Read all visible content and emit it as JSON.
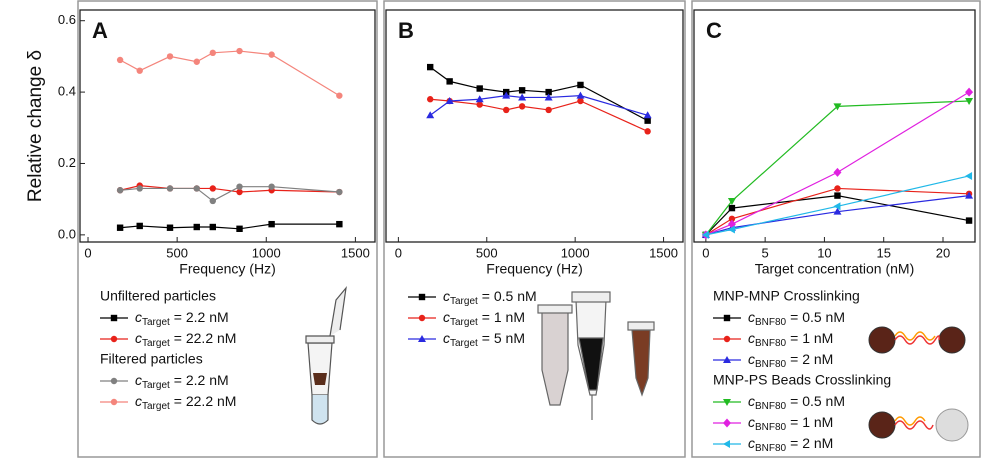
{
  "chart_data": [
    {
      "type": "line",
      "title": "A",
      "ylabel": "Relative change δ",
      "xlabel": "Frequency (Hz)",
      "x": [
        180,
        290,
        460,
        610,
        700,
        850,
        1030,
        1410
      ],
      "xlim": [
        -45,
        1610
      ],
      "xticks": [
        0,
        500,
        1000,
        1500
      ],
      "ylim": [
        -0.02,
        0.63
      ],
      "yticks": [
        {
          "value": 0,
          "label": "0.0"
        },
        0.2,
        0.4,
        0.6
      ],
      "groups": [
        {
          "title": "Unfiltered particles",
          "series": [
            {
              "name": {
                "symbol": "c",
                "sub": "Target",
                "text": "= 2.2 nM"
              },
              "color": "#000000",
              "marker": "square",
              "values": [
                0.02,
                0.025,
                0.02,
                0.022,
                0.022,
                0.017,
                0.03,
                0.03
              ]
            },
            {
              "name": {
                "symbol": "c",
                "sub": "Target",
                "text": "= 22.2 nM"
              },
              "color": "#e8221a",
              "marker": "circle",
              "values": [
                0.125,
                0.138,
                0.13,
                0.13,
                0.13,
                0.12,
                0.125,
                0.12
              ]
            }
          ]
        },
        {
          "title": "Filtered particles",
          "series": [
            {
              "name": {
                "symbol": "c",
                "sub": "Target",
                "text": "= 2.2 nM"
              },
              "color": "#808080",
              "marker": "circle",
              "values": [
                0.125,
                0.13,
                0.13,
                0.13,
                0.095,
                0.135,
                0.135,
                0.12
              ]
            },
            {
              "name": {
                "symbol": "c",
                "sub": "Target",
                "text": "= 22.2 nM"
              },
              "color": "#f4857c",
              "marker": "circle",
              "values": [
                0.49,
                0.46,
                0.5,
                0.485,
                0.51,
                0.515,
                0.505,
                0.39
              ]
            }
          ]
        }
      ]
    },
    {
      "type": "line",
      "title": "B",
      "xlabel": "Frequency (Hz)",
      "x": [
        180,
        290,
        460,
        610,
        700,
        850,
        1030,
        1410
      ],
      "xlim": [
        -70,
        1610
      ],
      "xticks": [
        0,
        500,
        1000,
        1500
      ],
      "ylim": [
        -0.02,
        0.63
      ],
      "groups": [
        {
          "series": [
            {
              "name": {
                "symbol": "c",
                "sub": "Target",
                "text": "= 0.5 nM"
              },
              "color": "#000000",
              "marker": "square",
              "values": [
                0.47,
                0.43,
                0.41,
                0.4,
                0.405,
                0.4,
                0.42,
                0.32
              ]
            },
            {
              "name": {
                "symbol": "c",
                "sub": "Target",
                "text": "= 1 nM"
              },
              "color": "#e8221a",
              "marker": "circle",
              "values": [
                0.38,
                0.375,
                0.365,
                0.35,
                0.36,
                0.35,
                0.375,
                0.29
              ]
            },
            {
              "name": {
                "symbol": "c",
                "sub": "Target",
                "text": "= 5 nM"
              },
              "color": "#2a2ae0",
              "marker": "triangle",
              "values": [
                0.335,
                0.375,
                0.38,
                0.39,
                0.385,
                0.385,
                0.39,
                0.335
              ]
            }
          ]
        }
      ]
    },
    {
      "type": "line",
      "title": "C",
      "xlabel": "Target concentration (nM)",
      "x": [
        0,
        2.2,
        11.1,
        22.2
      ],
      "xlim": [
        -1,
        22.7
      ],
      "xticks": [
        0,
        5,
        10,
        15,
        20
      ],
      "ylim": [
        -0.02,
        0.63
      ],
      "groups": [
        {
          "title": "MNP-MNP Crosslinking",
          "series": [
            {
              "name": {
                "symbol": "c",
                "sub": "BNF80",
                "text": "= 0.5 nM"
              },
              "color": "#000000",
              "marker": "square",
              "values": [
                0,
                0.075,
                0.11,
                0.04
              ]
            },
            {
              "name": {
                "symbol": "c",
                "sub": "BNF80",
                "text": "= 1 nM"
              },
              "color": "#e8221a",
              "marker": "circle",
              "values": [
                0,
                0.045,
                0.13,
                0.115
              ]
            },
            {
              "name": {
                "symbol": "c",
                "sub": "BNF80",
                "text": "= 2 nM"
              },
              "color": "#2a2ae0",
              "marker": "triangle",
              "values": [
                0,
                0.02,
                0.065,
                0.11
              ]
            }
          ]
        },
        {
          "title": "MNP-PS Beads Crosslinking",
          "series": [
            {
              "name": {
                "symbol": "c",
                "sub": "BNF80",
                "text": "= 0.5 nM"
              },
              "color": "#22bb22",
              "marker": "triangle-down",
              "values": [
                0,
                0.095,
                0.36,
                0.375
              ]
            },
            {
              "name": {
                "symbol": "c",
                "sub": "BNF80",
                "text": "= 1 nM"
              },
              "color": "#e020e0",
              "marker": "diamond",
              "values": [
                0,
                0.03,
                0.175,
                0.4
              ]
            },
            {
              "name": {
                "symbol": "c",
                "sub": "BNF80",
                "text": "= 2 nM"
              },
              "color": "#20b8e8",
              "marker": "triangle-left",
              "values": [
                0,
                0.015,
                0.08,
                0.165
              ]
            }
          ]
        }
      ]
    }
  ]
}
